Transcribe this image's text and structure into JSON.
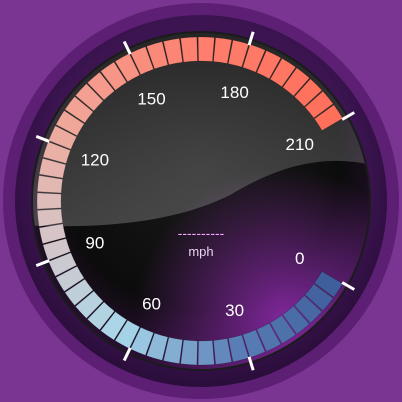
{
  "gauge": {
    "unit": "mph",
    "readout": "----------",
    "scale": {
      "min": 0,
      "max": 210,
      "labels": [
        "0",
        "30",
        "60",
        "90",
        "120",
        "150",
        "180",
        "210"
      ],
      "label_values": [
        0,
        30,
        60,
        90,
        120,
        150,
        180,
        210
      ]
    },
    "colors": {
      "background": "#7a3491",
      "bezel_outer": "#5c1f73",
      "face_dark": "#141414",
      "face_highlight": "#3a3a3a",
      "band_low": "#3f5f9c",
      "band_mid_low": "#a8d7ea",
      "band_mid": "#d5c6c8",
      "band_high": "#ff7f6e",
      "band_top": "#ff6f5a",
      "tick": "#ffffff",
      "readout": "#f3a6ff"
    }
  }
}
